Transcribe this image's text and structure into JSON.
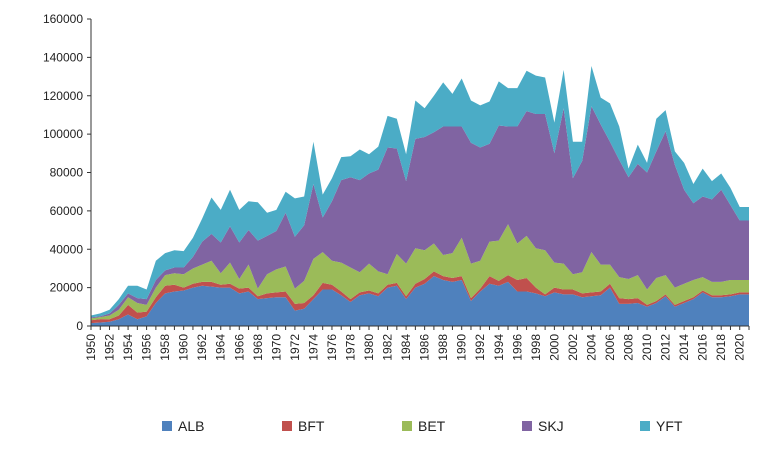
{
  "chart_data": {
    "type": "area",
    "stacked": true,
    "title": "",
    "xlabel": "",
    "ylabel": "",
    "ylim": [
      0,
      160000
    ],
    "yticks": [
      0,
      20000,
      40000,
      60000,
      80000,
      100000,
      120000,
      140000,
      160000
    ],
    "ytick_labels": [
      "0",
      "20000",
      "40000",
      "60000",
      "80000",
      "100000",
      "120000",
      "140000",
      "160000"
    ],
    "xtick_labels": [
      "1950",
      "1952",
      "1954",
      "1956",
      "1958",
      "1960",
      "1962",
      "1964",
      "1966",
      "1968",
      "1970",
      "1972",
      "1974",
      "1976",
      "1978",
      "1980",
      "1982",
      "1984",
      "1986",
      "1988",
      "1990",
      "1992",
      "1994",
      "1996",
      "1998",
      "2000",
      "2002",
      "2004",
      "2006",
      "2008",
      "2010",
      "2012",
      "2014",
      "2016",
      "2018",
      "2020"
    ],
    "grid": false,
    "legend_position": "bottom",
    "x": [
      1950,
      1951,
      1952,
      1953,
      1954,
      1955,
      1956,
      1957,
      1958,
      1959,
      1960,
      1961,
      1962,
      1963,
      1964,
      1965,
      1966,
      1967,
      1968,
      1969,
      1970,
      1971,
      1972,
      1973,
      1974,
      1975,
      1976,
      1977,
      1978,
      1979,
      1980,
      1981,
      1982,
      1983,
      1984,
      1985,
      1986,
      1987,
      1988,
      1989,
      1990,
      1991,
      1992,
      1993,
      1994,
      1995,
      1996,
      1997,
      1998,
      1999,
      2000,
      2001,
      2002,
      2003,
      2004,
      2005,
      2006,
      2007,
      2008,
      2009,
      2010,
      2011,
      2012,
      2013,
      2014,
      2015,
      2016,
      2017,
      2018,
      2019,
      2020,
      2021
    ],
    "series": [
      {
        "name": "ALB",
        "color": "#4f81bd",
        "values": [
          1500,
          1800,
          2200,
          3500,
          6000,
          3500,
          5000,
          12000,
          17000,
          18000,
          18500,
          20000,
          21000,
          20500,
          20000,
          20000,
          17000,
          18000,
          14000,
          14500,
          15000,
          15000,
          8000,
          9000,
          14000,
          19000,
          19000,
          16000,
          12500,
          16000,
          17000,
          15500,
          20000,
          21000,
          14000,
          20000,
          22000,
          26000,
          24000,
          23000,
          24000,
          13000,
          18000,
          22000,
          21000,
          23000,
          18000,
          18000,
          17000,
          15500,
          17500,
          16500,
          16500,
          15000,
          15500,
          16000,
          20000,
          11500,
          11500,
          12000,
          10000,
          12000,
          15500,
          10000,
          12000,
          14000,
          17500,
          15000,
          15000,
          15500,
          16500,
          16500
        ]
      },
      {
        "name": "BFT",
        "color": "#c0504d",
        "values": [
          1500,
          1800,
          1300,
          2000,
          5000,
          3500,
          2500,
          3000,
          4000,
          3500,
          1500,
          2000,
          2000,
          2500,
          1500,
          2000,
          2500,
          2000,
          1500,
          2500,
          2500,
          3000,
          3500,
          3000,
          2000,
          3500,
          2500,
          2000,
          1500,
          1500,
          1500,
          1500,
          1500,
          1500,
          1500,
          2000,
          2500,
          2500,
          2000,
          2000,
          2000,
          1500,
          1500,
          4000,
          2500,
          3500,
          6000,
          7000,
          3000,
          1000,
          2500,
          2500,
          2500,
          2000,
          2000,
          2000,
          2000,
          3000,
          2500,
          2500,
          1000,
          1000,
          1000,
          1000,
          1000,
          1000,
          1000,
          1000,
          1000,
          1000,
          1000,
          1000
        ]
      },
      {
        "name": "BET",
        "color": "#9bbb59",
        "values": [
          1000,
          1000,
          2000,
          3000,
          4000,
          5000,
          3500,
          5000,
          5500,
          6000,
          7000,
          8000,
          9000,
          11000,
          6000,
          11000,
          5000,
          12000,
          4000,
          10000,
          12000,
          13000,
          8000,
          11500,
          19000,
          16000,
          12500,
          15000,
          16500,
          10500,
          14000,
          11500,
          5500,
          15000,
          17000,
          18500,
          15000,
          14500,
          11000,
          13000,
          20000,
          18000,
          14500,
          18000,
          21000,
          26500,
          19000,
          22000,
          20500,
          23000,
          13000,
          13500,
          8000,
          11000,
          21000,
          14000,
          10000,
          11000,
          10500,
          12000,
          8000,
          12000,
          10000,
          9000,
          9000,
          9000,
          7000,
          7000,
          7000,
          7500,
          6500,
          6500
        ]
      },
      {
        "name": "SKJ",
        "color": "#8064a2",
        "values": [
          500,
          500,
          1000,
          2500,
          2000,
          2500,
          3000,
          4000,
          2500,
          3000,
          3500,
          6000,
          12000,
          14000,
          16000,
          19000,
          19000,
          18000,
          25000,
          20000,
          20000,
          28000,
          27000,
          29000,
          39000,
          18000,
          31000,
          43000,
          47000,
          48000,
          47000,
          53000,
          66000,
          55000,
          43000,
          57000,
          59000,
          58000,
          67000,
          66000,
          58000,
          63000,
          59000,
          51000,
          60000,
          51000,
          61000,
          65000,
          70000,
          71000,
          57000,
          81000,
          50000,
          58000,
          76000,
          73000,
          64000,
          61000,
          53000,
          58000,
          61000,
          66000,
          75000,
          64000,
          49000,
          40000,
          42000,
          43000,
          48000,
          39000,
          31000,
          31000
        ]
      },
      {
        "name": "YFT",
        "color": "#4bacc6",
        "values": [
          1000,
          1500,
          2000,
          3000,
          4000,
          6500,
          5000,
          10000,
          9000,
          9000,
          8500,
          10000,
          12000,
          19000,
          17000,
          19000,
          17000,
          15000,
          20000,
          12000,
          11000,
          11000,
          20000,
          15000,
          22000,
          12000,
          12000,
          12000,
          11000,
          16000,
          10000,
          12000,
          16500,
          15500,
          14000,
          20000,
          15000,
          19000,
          23000,
          17000,
          25000,
          22000,
          22000,
          22000,
          23000,
          20000,
          20000,
          21000,
          20000,
          19000,
          16000,
          20000,
          19000,
          10000,
          21000,
          14000,
          20000,
          17500,
          4500,
          10000,
          5000,
          17000,
          11000,
          7000,
          14000,
          10000,
          14500,
          9500,
          8500,
          9000,
          7000,
          7000
        ]
      }
    ]
  }
}
